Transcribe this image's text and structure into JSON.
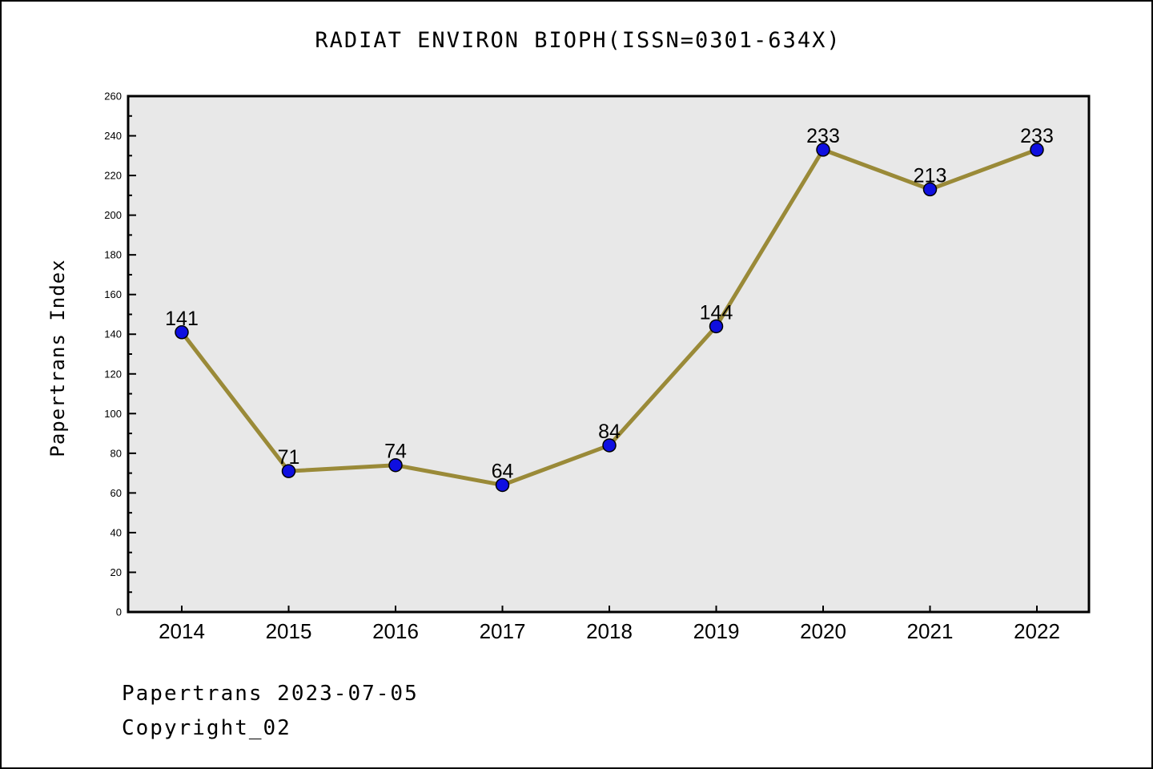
{
  "footer": {
    "line1": "Papertrans 2023-07-05",
    "line2": "Copyright_02"
  },
  "chart_data": {
    "type": "line",
    "title": "RADIAT ENVIRON BIOPH(ISSN=0301-634X)",
    "xlabel": "",
    "ylabel": "Papertrans Index",
    "x": [
      2014,
      2015,
      2016,
      2017,
      2018,
      2019,
      2020,
      2021,
      2022
    ],
    "series": [
      {
        "name": "Papertrans Index",
        "values": [
          141,
          71,
          74,
          64,
          84,
          144,
          233,
          213,
          233
        ]
      }
    ],
    "ylim": [
      0,
      260
    ],
    "y_tick_step": 20,
    "y_minor_tick_step": 10,
    "grid": false,
    "legend_position": "none",
    "show_point_labels": true,
    "styles": {
      "line_color": "#9a8a38",
      "marker_color": "#0f0fe0",
      "marker_edge_color": "#000000",
      "plot_bg": "#e8e8e8",
      "axis_color": "#000000",
      "label_color": "#000000"
    }
  }
}
